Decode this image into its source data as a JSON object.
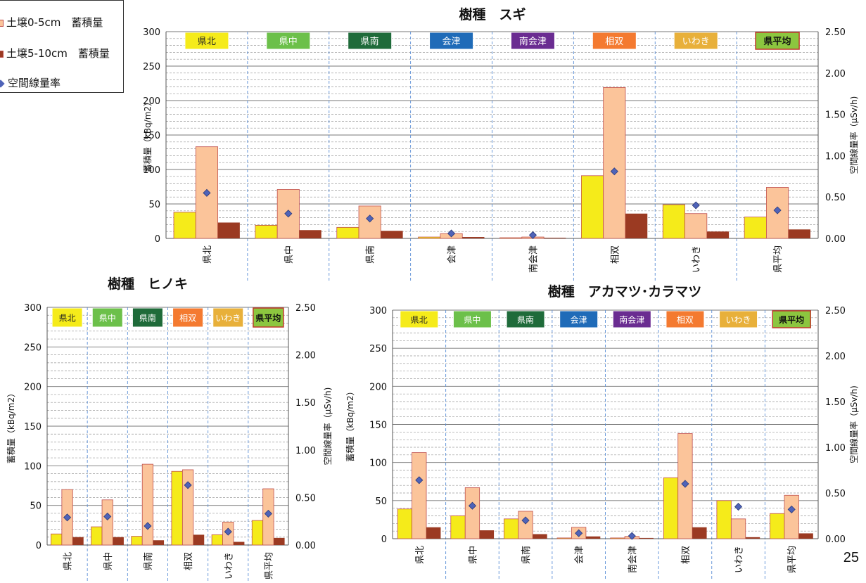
{
  "legend": {
    "items": [
      {
        "label": "土壌0-5cm　蓄積量",
        "color": "#FBC49A",
        "edge": "#C0504D",
        "marker": "square"
      },
      {
        "label": "土壌5-10cm　蓄積量",
        "color": "#9B3A22",
        "edge": "#7A2A14",
        "marker": "square"
      },
      {
        "label": "空間線量率",
        "color": "#4F63B8",
        "edge": "#2B3A7A",
        "marker": "diamond"
      }
    ]
  },
  "page_number": "25",
  "colors": {
    "yellow_bar": "#F5EB1A",
    "peach_bar": "#FBC49A",
    "brown_bar": "#9B3A22",
    "diamond": "#4F63B8"
  },
  "badge_colors": {
    "県北": {
      "bg": "#F5EB1A",
      "fg": "#222222"
    },
    "県中": {
      "bg": "#6CC04A",
      "fg": "#ffffff"
    },
    "県南": {
      "bg": "#1F6B3A",
      "fg": "#ffffff"
    },
    "会津": {
      "bg": "#1F6BB8",
      "fg": "#ffffff"
    },
    "南会津": {
      "bg": "#6A2C91",
      "fg": "#ffffff"
    },
    "相双": {
      "bg": "#F47A30",
      "fg": "#ffffff"
    },
    "いわき": {
      "bg": "#E8B03A",
      "fg": "#ffffff"
    },
    "県平均": {
      "bg": "#8CC63F",
      "fg": "#111111",
      "border": "#C0392B",
      "bold": true
    }
  },
  "chart_data": [
    {
      "type": "bar",
      "title": "樹種　スギ",
      "ylabel": "蓄積量（kBq/m2）",
      "y2label": "空間線量率（μSv/h)",
      "ylim": [
        0,
        300
      ],
      "y2lim": [
        0,
        2.5
      ],
      "yticks": [
        "0",
        "50",
        "100",
        "150",
        "200",
        "250",
        "300"
      ],
      "y2ticks": [
        "0.00",
        "0.50",
        "1.00",
        "1.50",
        "2.00",
        "2.50"
      ],
      "categories": [
        "県北",
        "県中",
        "県南",
        "会津",
        "南会津",
        "相双",
        "いわき",
        "県平均"
      ],
      "series": [
        {
          "kind": "bar",
          "color": "#F5EB1A",
          "values": [
            38,
            19,
            16,
            2,
            1,
            91,
            49,
            31
          ]
        },
        {
          "kind": "bar",
          "name": "土壌0-5cm　蓄積量",
          "color": "#FBC49A",
          "values": [
            133,
            71,
            47,
            7,
            2,
            219,
            36,
            74
          ]
        },
        {
          "kind": "bar",
          "name": "土壌5-10cm　蓄積量",
          "color": "#9B3A22",
          "values": [
            23,
            12,
            11,
            2,
            1,
            36,
            10,
            13
          ]
        },
        {
          "kind": "scatter",
          "name": "空間線量率",
          "axis": "y2",
          "color": "#4F63B8",
          "values": [
            0.55,
            0.3,
            0.24,
            0.06,
            0.04,
            0.81,
            0.4,
            0.34
          ]
        }
      ]
    },
    {
      "type": "bar",
      "title": "樹種　ヒノキ",
      "ylabel": "蓄積量（kBq/m2）",
      "y2label": "空間線量率（μSv/h)",
      "ylim": [
        0,
        300
      ],
      "y2lim": [
        0,
        2.5
      ],
      "yticks": [
        "0",
        "50",
        "100",
        "150",
        "200",
        "250",
        "300"
      ],
      "y2ticks": [
        "0.00",
        "0.50",
        "1.00",
        "1.50",
        "2.00",
        "2.50"
      ],
      "categories": [
        "県北",
        "県中",
        "県南",
        "相双",
        "いわき",
        "県平均"
      ],
      "series": [
        {
          "kind": "bar",
          "color": "#F5EB1A",
          "values": [
            14,
            23,
            11,
            93,
            13,
            31
          ]
        },
        {
          "kind": "bar",
          "name": "土壌0-5cm　蓄積量",
          "color": "#FBC49A",
          "values": [
            70,
            57,
            102,
            95,
            29,
            71
          ]
        },
        {
          "kind": "bar",
          "name": "土壌5-10cm　蓄積量",
          "color": "#9B3A22",
          "values": [
            10,
            10,
            6,
            13,
            4,
            9
          ]
        },
        {
          "kind": "scatter",
          "name": "空間線量率",
          "axis": "y2",
          "color": "#4F63B8",
          "values": [
            0.29,
            0.3,
            0.2,
            0.63,
            0.14,
            0.33
          ]
        }
      ]
    },
    {
      "type": "bar",
      "title": "樹種　アカマツ･カラマツ",
      "ylabel": "蓄積量（kBq/m2）",
      "y2label": "空間線量率（μSv/h)",
      "ylim": [
        0,
        300
      ],
      "y2lim": [
        0,
        2.5
      ],
      "yticks": [
        "0",
        "50",
        "100",
        "150",
        "200",
        "250",
        "300"
      ],
      "y2ticks": [
        "0.00",
        "0.50",
        "1.00",
        "1.50",
        "2.00",
        "2.50"
      ],
      "categories": [
        "県北",
        "県中",
        "県南",
        "会津",
        "南会津",
        "相双",
        "いわき",
        "県平均"
      ],
      "series": [
        {
          "kind": "bar",
          "color": "#F5EB1A",
          "values": [
            39,
            30,
            26,
            1,
            1,
            80,
            50,
            33
          ]
        },
        {
          "kind": "bar",
          "name": "土壌0-5cm　蓄積量",
          "color": "#FBC49A",
          "values": [
            113,
            67,
            36,
            15,
            3,
            138,
            26,
            57
          ]
        },
        {
          "kind": "bar",
          "name": "土壌5-10cm　蓄積量",
          "color": "#9B3A22",
          "values": [
            15,
            11,
            6,
            3,
            1,
            15,
            2,
            7
          ]
        },
        {
          "kind": "scatter",
          "name": "空間線量率",
          "axis": "y2",
          "color": "#4F63B8",
          "values": [
            0.64,
            0.36,
            0.2,
            0.06,
            0.03,
            0.6,
            0.35,
            0.32
          ]
        }
      ]
    }
  ]
}
